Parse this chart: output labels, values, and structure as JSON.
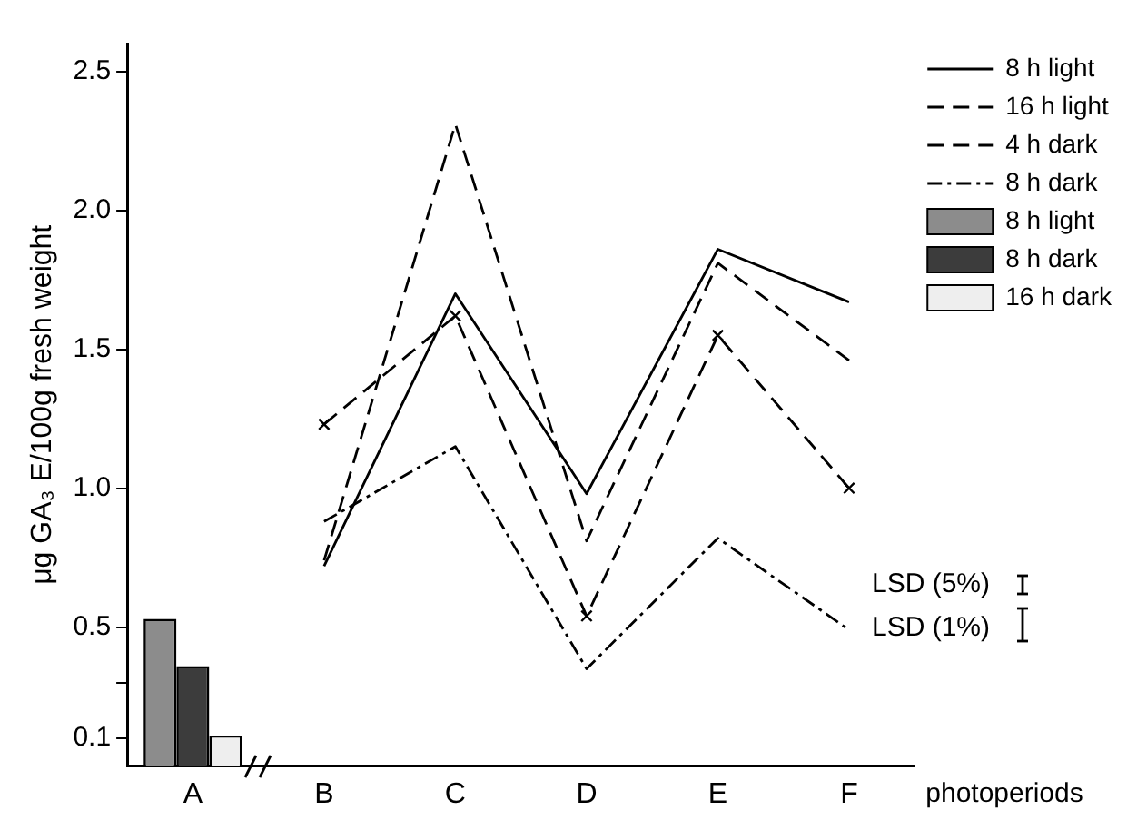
{
  "chart_data": {
    "type": "line",
    "ylabel": "μg GA₃ E/100g fresh weight",
    "xlabel": "photoperiods",
    "categories": [
      "A",
      "B",
      "C",
      "D",
      "E",
      "F"
    ],
    "series": [
      {
        "name": "8 h light",
        "color": "#000000",
        "line_style": "solid",
        "values": [
          null,
          0.72,
          1.7,
          0.98,
          1.86,
          1.67
        ]
      },
      {
        "name": "16 h light",
        "color": "#000000",
        "line_style": "dashed",
        "values": [
          null,
          0.74,
          2.31,
          0.81,
          1.81,
          1.46
        ]
      },
      {
        "name": "4 h dark",
        "color": "#000000",
        "line_style": "dashed",
        "marker": "cross",
        "values": [
          null,
          1.23,
          1.62,
          0.54,
          1.55,
          1.0
        ]
      },
      {
        "name": "8 h dark",
        "color": "#000000",
        "line_style": "dotted",
        "values": [
          null,
          0.88,
          1.15,
          0.35,
          0.82,
          0.49
        ]
      },
      {
        "name": "8 h light",
        "type": "bar",
        "color": "#8c8c8c",
        "values": [
          0.53,
          null,
          null,
          null,
          null,
          null
        ]
      },
      {
        "name": "8 h dark",
        "type": "bar",
        "color": "#3c3c3c",
        "values": [
          0.36,
          null,
          null,
          null,
          null,
          null
        ]
      },
      {
        "name": "16 h dark",
        "type": "bar",
        "color": "#eeeeee",
        "values": [
          0.11,
          null,
          null,
          null,
          null,
          null
        ]
      }
    ],
    "ylim": [
      0,
      2.6
    ],
    "yticks": [
      {
        "value": 0.1,
        "label": "0.1"
      },
      {
        "value": 0.3,
        "label": null
      },
      {
        "value": 0.5,
        "label": "0.5"
      },
      {
        "value": 1,
        "label": "1.0"
      },
      {
        "value": 1.5,
        "label": "1.5"
      },
      {
        "value": 2,
        "label": "2.0"
      },
      {
        "value": 2.5,
        "label": "2.5"
      }
    ],
    "grid": false,
    "legend": "top right",
    "marker": "none",
    "annotations": [
      "LSD (5%)",
      "LSD (1%)"
    ]
  }
}
